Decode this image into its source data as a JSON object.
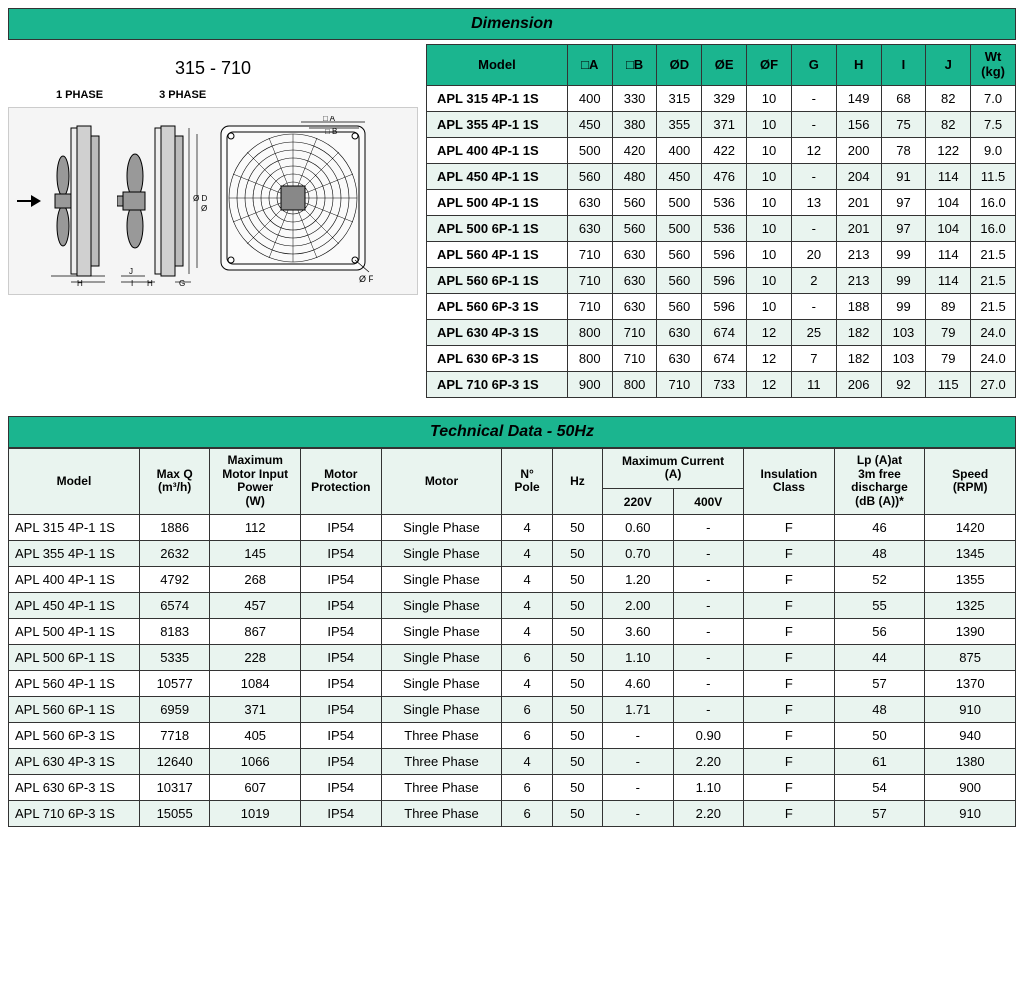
{
  "dimension": {
    "title": "Dimension",
    "sizeRange": "315 - 710",
    "phase1Label": "1 PHASE",
    "phase3Label": "3 PHASE",
    "diagramLabels": {
      "A": "A",
      "B": "B",
      "D": "Ø D",
      "E": "Ø E",
      "F": "Ø F",
      "G": "G",
      "H": "H",
      "I": "I",
      "J": "J"
    },
    "columns": [
      "Model",
      "□A",
      "□B",
      "ØD",
      "ØE",
      "ØF",
      "G",
      "H",
      "I",
      "J",
      "Wt (kg)"
    ],
    "rows": [
      [
        "APL 315 4P-1 1S",
        "400",
        "330",
        "315",
        "329",
        "10",
        "-",
        "149",
        "68",
        "82",
        "7.0"
      ],
      [
        "APL 355 4P-1 1S",
        "450",
        "380",
        "355",
        "371",
        "10",
        "-",
        "156",
        "75",
        "82",
        "7.5"
      ],
      [
        "APL 400 4P-1 1S",
        "500",
        "420",
        "400",
        "422",
        "10",
        "12",
        "200",
        "78",
        "122",
        "9.0"
      ],
      [
        "APL 450 4P-1 1S",
        "560",
        "480",
        "450",
        "476",
        "10",
        "-",
        "204",
        "91",
        "114",
        "11.5"
      ],
      [
        "APL 500 4P-1 1S",
        "630",
        "560",
        "500",
        "536",
        "10",
        "13",
        "201",
        "97",
        "104",
        "16.0"
      ],
      [
        "APL 500 6P-1 1S",
        "630",
        "560",
        "500",
        "536",
        "10",
        "-",
        "201",
        "97",
        "104",
        "16.0"
      ],
      [
        "APL 560 4P-1 1S",
        "710",
        "630",
        "560",
        "596",
        "10",
        "20",
        "213",
        "99",
        "114",
        "21.5"
      ],
      [
        "APL 560 6P-1 1S",
        "710",
        "630",
        "560",
        "596",
        "10",
        "2",
        "213",
        "99",
        "114",
        "21.5"
      ],
      [
        "APL 560 6P-3 1S",
        "710",
        "630",
        "560",
        "596",
        "10",
        "-",
        "188",
        "99",
        "89",
        "21.5"
      ],
      [
        "APL 630 4P-3 1S",
        "800",
        "710",
        "630",
        "674",
        "12",
        "25",
        "182",
        "103",
        "79",
        "24.0"
      ],
      [
        "APL 630 6P-3 1S",
        "800",
        "710",
        "630",
        "674",
        "12",
        "7",
        "182",
        "103",
        "79",
        "24.0"
      ],
      [
        "APL 710 6P-3 1S",
        "900",
        "800",
        "710",
        "733",
        "12",
        "11",
        "206",
        "92",
        "115",
        "27.0"
      ]
    ],
    "colWidths": [
      "22%",
      "7%",
      "7%",
      "7%",
      "7%",
      "7%",
      "7%",
      "7%",
      "7%",
      "7%",
      "7%"
    ],
    "headerBg": "#1bb58f",
    "stripeBg": "#e9f4ef"
  },
  "technical": {
    "title": "Technical Data - 50Hz",
    "headerRow1": [
      "Model",
      "Max Q (m³/h)",
      "Maximum Motor Input Power (W)",
      "Motor Protection",
      "Motor",
      "N° Pole",
      "Hz",
      "Maximum Current (A)",
      "Insulation Class",
      "Lp (A)at 3m free discharge (dB (A))*",
      "Speed (RPM)"
    ],
    "headerRow2": [
      "220V",
      "400V"
    ],
    "rows": [
      [
        "APL 315 4P-1 1S",
        "1886",
        "112",
        "IP54",
        "Single Phase",
        "4",
        "50",
        "0.60",
        "-",
        "F",
        "46",
        "1420"
      ],
      [
        "APL 355 4P-1 1S",
        "2632",
        "145",
        "IP54",
        "Single Phase",
        "4",
        "50",
        "0.70",
        "-",
        "F",
        "48",
        "1345"
      ],
      [
        "APL 400 4P-1 1S",
        "4792",
        "268",
        "IP54",
        "Single Phase",
        "4",
        "50",
        "1.20",
        "-",
        "F",
        "52",
        "1355"
      ],
      [
        "APL 450 4P-1 1S",
        "6574",
        "457",
        "IP54",
        "Single Phase",
        "4",
        "50",
        "2.00",
        "-",
        "F",
        "55",
        "1325"
      ],
      [
        "APL 500 4P-1 1S",
        "8183",
        "867",
        "IP54",
        "Single Phase",
        "4",
        "50",
        "3.60",
        "-",
        "F",
        "56",
        "1390"
      ],
      [
        "APL 500 6P-1 1S",
        "5335",
        "228",
        "IP54",
        "Single Phase",
        "6",
        "50",
        "1.10",
        "-",
        "F",
        "44",
        "875"
      ],
      [
        "APL 560 4P-1 1S",
        "10577",
        "1084",
        "IP54",
        "Single Phase",
        "4",
        "50",
        "4.60",
        "-",
        "F",
        "57",
        "1370"
      ],
      [
        "APL 560 6P-1 1S",
        "6959",
        "371",
        "IP54",
        "Single Phase",
        "6",
        "50",
        "1.71",
        "-",
        "F",
        "48",
        "910"
      ],
      [
        "APL 560 6P-3 1S",
        "7718",
        "405",
        "IP54",
        "Three Phase",
        "6",
        "50",
        "-",
        "0.90",
        "F",
        "50",
        "940"
      ],
      [
        "APL 630 4P-3 1S",
        "12640",
        "1066",
        "IP54",
        "Three Phase",
        "4",
        "50",
        "-",
        "2.20",
        "F",
        "61",
        "1380"
      ],
      [
        "APL 630 6P-3 1S",
        "10317",
        "607",
        "IP54",
        "Three Phase",
        "6",
        "50",
        "-",
        "1.10",
        "F",
        "54",
        "900"
      ],
      [
        "APL 710 6P-3 1S",
        "15055",
        "1019",
        "IP54",
        "Three Phase",
        "6",
        "50",
        "-",
        "2.20",
        "F",
        "57",
        "910"
      ]
    ],
    "colWidths": [
      "13%",
      "7%",
      "9%",
      "8%",
      "12%",
      "5%",
      "5%",
      "7%",
      "7%",
      "9%",
      "9%",
      "9%"
    ],
    "headerBg": "#e9f4ef",
    "stripeBg": "#e9f4ef"
  },
  "colors": {
    "teal": "#1bb58f",
    "lightGreen": "#e9f4ef",
    "border": "#333333"
  }
}
